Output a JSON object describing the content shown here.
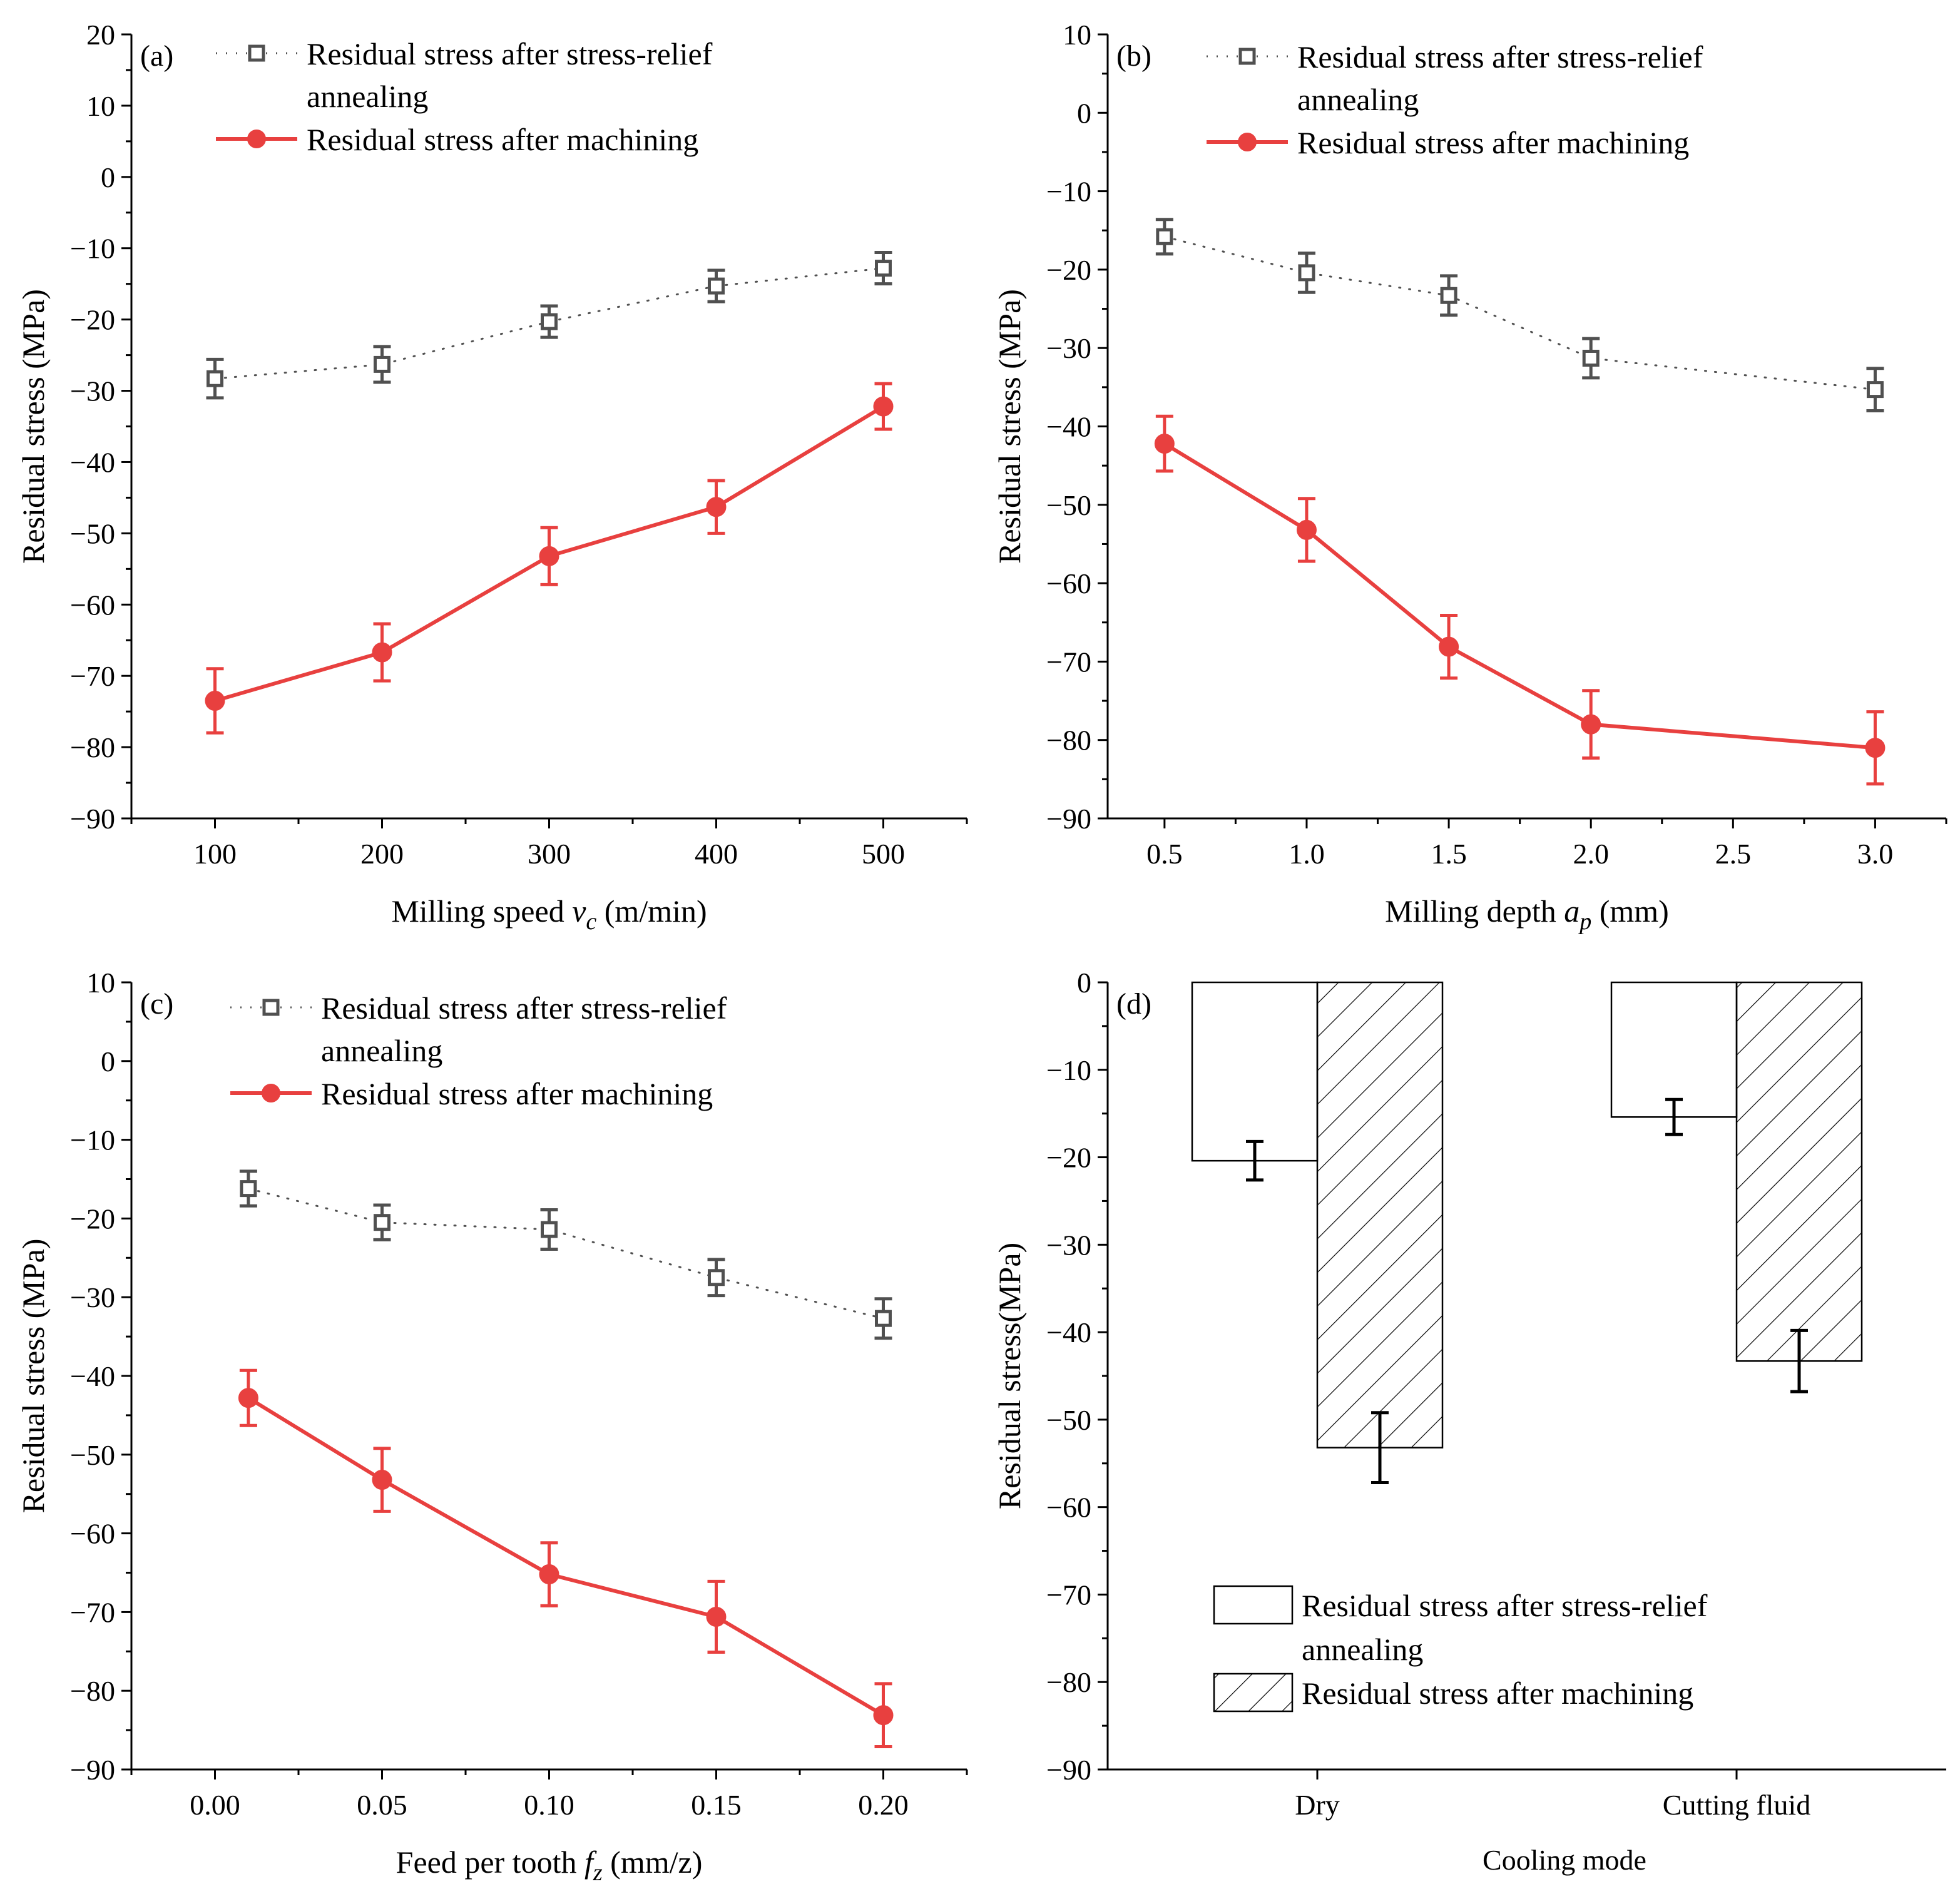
{
  "colors": {
    "machining": "#e8403f",
    "annealing": "#505050",
    "axis": "#000000",
    "bar_outline": "#000000"
  },
  "legend": {
    "annealing_line1": "Residual stress after stress-relief",
    "annealing_line2": "annealing",
    "machining": "Residual stress after machining"
  },
  "chart_data": [
    {
      "id": "a",
      "type": "line",
      "panel_label": "(a)",
      "xlabel": "Milling speed",
      "xlabel_var": "v",
      "xlabel_sub": "c",
      "xlabel_unit": "(m/min)",
      "ylabel": "Residual stress (MPa)",
      "xlim": [
        50,
        550
      ],
      "ylim": [
        -90,
        20
      ],
      "xticks": [
        100,
        200,
        300,
        400,
        500
      ],
      "xtick_labels": [
        "100",
        "200",
        "300",
        "400",
        "500"
      ],
      "yticks": [
        20,
        10,
        0,
        -10,
        -20,
        -30,
        -40,
        -50,
        -60,
        -70,
        -80,
        -90
      ],
      "ytick_labels": [
        "20",
        "10",
        "0",
        "−10",
        "−20",
        "−30",
        "−40",
        "−50",
        "−60",
        "−70",
        "−80",
        "−90"
      ],
      "series": [
        {
          "name": "Residual stress after stress-relief annealing",
          "style": "annealing",
          "x": [
            100,
            200,
            300,
            400,
            500
          ],
          "y": [
            -28.3,
            -26.3,
            -20.3,
            -15.3,
            -12.8
          ],
          "err": [
            2.7,
            2.5,
            2.2,
            2.2,
            2.2
          ]
        },
        {
          "name": "Residual stress after machining",
          "style": "machining",
          "x": [
            100,
            200,
            300,
            400,
            500
          ],
          "y": [
            -73.5,
            -66.7,
            -53.2,
            -46.3,
            -32.2
          ],
          "err": [
            4.5,
            4.0,
            4.0,
            3.7,
            3.2
          ]
        }
      ]
    },
    {
      "id": "b",
      "type": "line",
      "panel_label": "(b)",
      "xlabel": "Milling depth",
      "xlabel_var": "a",
      "xlabel_sub": "p",
      "xlabel_unit": "(mm)",
      "ylabel": "Residual stress (MPa)",
      "xlim": [
        0.3,
        3.25
      ],
      "ylim": [
        -90,
        10
      ],
      "xticks": [
        0.5,
        1.0,
        1.5,
        2.0,
        2.5,
        3.0
      ],
      "xtick_labels": [
        "0.5",
        "1.0",
        "1.5",
        "2.0",
        "2.5",
        "3.0"
      ],
      "yticks": [
        10,
        0,
        -10,
        -20,
        -30,
        -40,
        -50,
        -60,
        -70,
        -80,
        -90
      ],
      "ytick_labels": [
        "10",
        "0",
        "−10",
        "−20",
        "−30",
        "−40",
        "−50",
        "−60",
        "−70",
        "−80",
        "−90"
      ],
      "series": [
        {
          "name": "Residual stress after stress-relief annealing",
          "style": "annealing",
          "x": [
            0.5,
            1.0,
            1.5,
            2.0,
            3.0
          ],
          "y": [
            -15.8,
            -20.4,
            -23.3,
            -31.3,
            -35.3
          ],
          "err": [
            2.2,
            2.5,
            2.5,
            2.5,
            2.7
          ]
        },
        {
          "name": "Residual stress after machining",
          "style": "machining",
          "x": [
            0.5,
            1.0,
            1.5,
            2.0,
            3.0
          ],
          "y": [
            -42.2,
            -53.2,
            -68.1,
            -78.0,
            -81.0
          ],
          "err": [
            3.5,
            4.0,
            4.0,
            4.3,
            4.6
          ]
        }
      ]
    },
    {
      "id": "c",
      "type": "line",
      "panel_label": "(c)",
      "xlabel": "Feed per tooth",
      "xlabel_var": "f",
      "xlabel_sub": "z",
      "xlabel_unit": "(mm/z)",
      "ylabel": "Residual stress (MPa)",
      "xlim": [
        -0.025,
        0.225
      ],
      "ylim": [
        -90,
        10
      ],
      "xticks": [
        0.0,
        0.05,
        0.1,
        0.15,
        0.2
      ],
      "xtick_labels": [
        "0.00",
        "0.05",
        "0.10",
        "0.15",
        "0.20"
      ],
      "yticks": [
        10,
        0,
        -10,
        -20,
        -30,
        -40,
        -50,
        -60,
        -70,
        -80,
        -90
      ],
      "ytick_labels": [
        "10",
        "0",
        "−10",
        "−20",
        "−30",
        "−40",
        "−50",
        "−60",
        "−70",
        "−80",
        "−90"
      ],
      "series": [
        {
          "name": "Residual stress after stress-relief annealing",
          "style": "annealing",
          "x": [
            0.01,
            0.05,
            0.1,
            0.15,
            0.2
          ],
          "y": [
            -16.2,
            -20.5,
            -21.4,
            -27.5,
            -32.7
          ],
          "err": [
            2.2,
            2.2,
            2.5,
            2.3,
            2.5
          ]
        },
        {
          "name": "Residual stress after machining",
          "style": "machining",
          "x": [
            0.01,
            0.05,
            0.1,
            0.15,
            0.2
          ],
          "y": [
            -42.8,
            -53.2,
            -65.2,
            -70.6,
            -83.1
          ],
          "err": [
            3.5,
            4.0,
            4.0,
            4.5,
            4.0
          ]
        }
      ]
    },
    {
      "id": "d",
      "type": "bar",
      "panel_label": "(d)",
      "xlabel": "Cooling mode",
      "ylabel": "Residual stress(MPa)",
      "ylim": [
        -90,
        0
      ],
      "categories": [
        "Dry",
        "Cutting fluid"
      ],
      "yticks": [
        0,
        -10,
        -20,
        -30,
        -40,
        -50,
        -60,
        -70,
        -80,
        -90
      ],
      "ytick_labels": [
        "0",
        "−10",
        "−20",
        "−30",
        "−40",
        "−50",
        "−60",
        "−70",
        "−80",
        "−90"
      ],
      "series": [
        {
          "name": "Residual stress after stress-relief annealing",
          "style": "open",
          "values": [
            -20.4,
            -15.4
          ],
          "err": [
            2.2,
            2.0
          ]
        },
        {
          "name": "Residual stress after machining",
          "style": "hatched",
          "values": [
            -53.2,
            -43.3
          ],
          "err": [
            4.0,
            3.5
          ]
        }
      ]
    }
  ]
}
